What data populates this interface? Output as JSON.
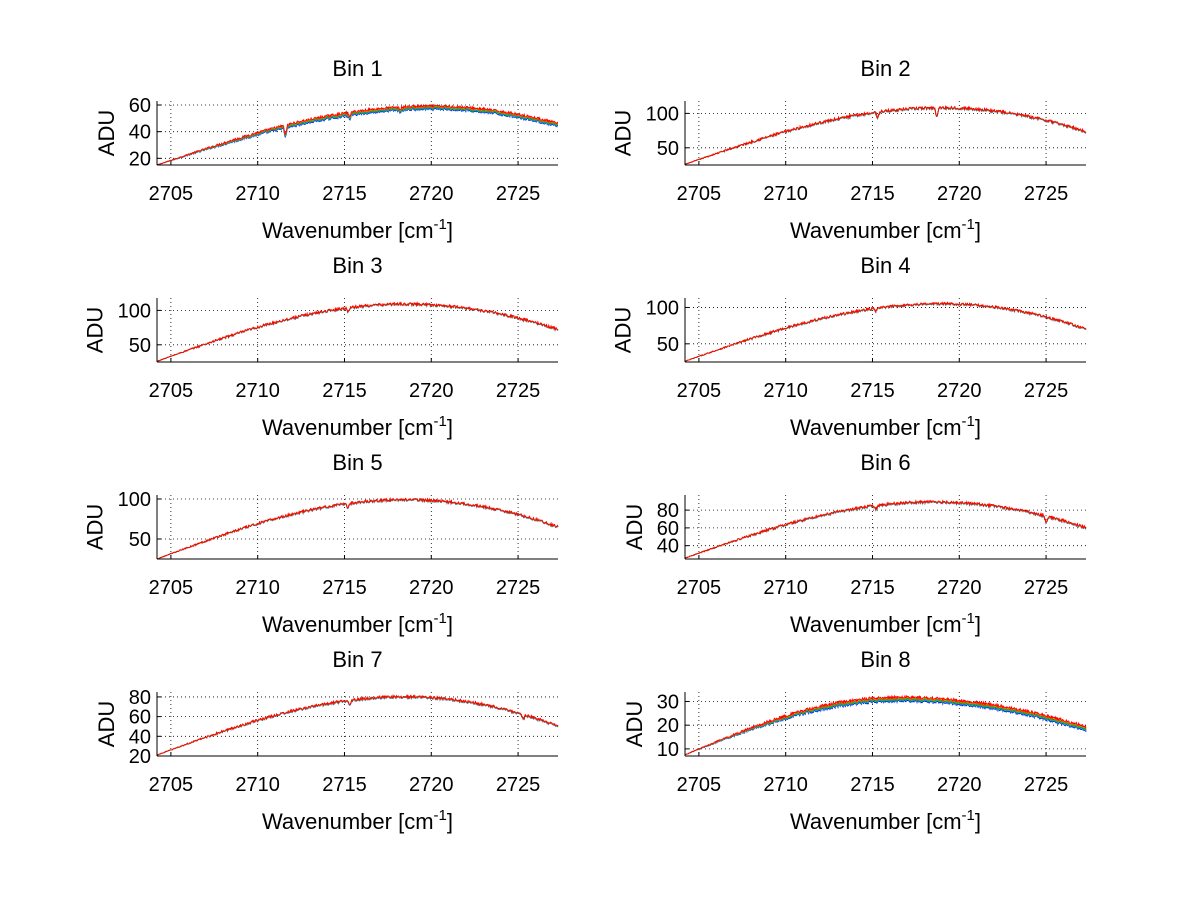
{
  "figure": {
    "background": "#ffffff",
    "series_colors": [
      "#0000ff",
      "#00c0c0",
      "#00a000",
      "#ff8000",
      "#ff0000"
    ]
  },
  "chart_data": [
    {
      "type": "line",
      "title": "Bin 1",
      "xlabel": "Wavenumber [cm",
      "xlabel_sup": "-1",
      "xlabel_close": "]",
      "ylabel": "ADU",
      "xlim": [
        2704.2,
        2727.3
      ],
      "ylim": [
        15,
        63
      ],
      "xticks": [
        2705,
        2710,
        2715,
        2720,
        2725
      ],
      "yticks": [
        20,
        40,
        60
      ],
      "grid": true,
      "curve": {
        "start": 15,
        "peak": 58,
        "peak_x": 2720,
        "end": 45,
        "noise": 0.9
      },
      "series_spread": 1.2,
      "features": [
        {
          "x": 2711.6,
          "depth": 7
        },
        {
          "x": 2715.3,
          "depth": 3
        },
        {
          "x": 2718.2,
          "depth": 2
        }
      ]
    },
    {
      "type": "line",
      "title": "Bin 2",
      "xlabel": "Wavenumber [cm",
      "xlabel_sup": "-1",
      "xlabel_close": "]",
      "ylabel": "ADU",
      "xlim": [
        2704.2,
        2727.3
      ],
      "ylim": [
        25,
        118
      ],
      "xticks": [
        2705,
        2710,
        2715,
        2720,
        2725
      ],
      "yticks": [
        50,
        100
      ],
      "grid": true,
      "curve": {
        "start": 26,
        "peak": 108,
        "peak_x": 2719,
        "end": 73,
        "noise": 1.8
      },
      "series_spread": 0.5,
      "features": [
        {
          "x": 2715.3,
          "depth": 8
        },
        {
          "x": 2718.7,
          "depth": 12
        }
      ]
    },
    {
      "type": "line",
      "title": "Bin 3",
      "xlabel": "Wavenumber [cm",
      "xlabel_sup": "-1",
      "xlabel_close": "]",
      "ylabel": "ADU",
      "xlim": [
        2704.2,
        2727.3
      ],
      "ylim": [
        25,
        118
      ],
      "xticks": [
        2705,
        2710,
        2715,
        2720,
        2725
      ],
      "yticks": [
        50,
        100
      ],
      "grid": true,
      "curve": {
        "start": 26,
        "peak": 109,
        "peak_x": 2718.5,
        "end": 72,
        "noise": 1.8
      },
      "series_spread": 0.4,
      "features": [
        {
          "x": 2715.2,
          "depth": 5
        }
      ]
    },
    {
      "type": "line",
      "title": "Bin 4",
      "xlabel": "Wavenumber [cm",
      "xlabel_sup": "-1",
      "xlabel_close": "]",
      "ylabel": "ADU",
      "xlim": [
        2704.2,
        2727.3
      ],
      "ylim": [
        25,
        113
      ],
      "xticks": [
        2705,
        2710,
        2715,
        2720,
        2725
      ],
      "yticks": [
        50,
        100
      ],
      "grid": true,
      "curve": {
        "start": 26,
        "peak": 105,
        "peak_x": 2719,
        "end": 70,
        "noise": 1.6
      },
      "series_spread": 0.4,
      "features": [
        {
          "x": 2715.2,
          "depth": 4
        }
      ]
    },
    {
      "type": "line",
      "title": "Bin 5",
      "xlabel": "Wavenumber [cm",
      "xlabel_sup": "-1",
      "xlabel_close": "]",
      "ylabel": "ADU",
      "xlim": [
        2704.2,
        2727.3
      ],
      "ylim": [
        25,
        105
      ],
      "xticks": [
        2705,
        2710,
        2715,
        2720,
        2725
      ],
      "yticks": [
        50,
        100
      ],
      "grid": true,
      "curve": {
        "start": 25,
        "peak": 99,
        "peak_x": 2718.5,
        "end": 65,
        "noise": 1.5
      },
      "series_spread": 0.4,
      "features": [
        {
          "x": 2715.2,
          "depth": 5
        }
      ]
    },
    {
      "type": "line",
      "title": "Bin 6",
      "xlabel": "Wavenumber [cm",
      "xlabel_sup": "-1",
      "xlabel_close": "]",
      "ylabel": "ADU",
      "xlim": [
        2704.2,
        2727.3
      ],
      "ylim": [
        25,
        97
      ],
      "xticks": [
        2705,
        2710,
        2715,
        2720,
        2725
      ],
      "yticks": [
        40,
        60,
        80
      ],
      "grid": true,
      "curve": {
        "start": 26,
        "peak": 89,
        "peak_x": 2718.5,
        "end": 60,
        "noise": 1.4
      },
      "series_spread": 0.4,
      "features": [
        {
          "x": 2715.2,
          "depth": 4
        },
        {
          "x": 2725,
          "depth": 7
        }
      ]
    },
    {
      "type": "line",
      "title": "Bin 7",
      "xlabel": "Wavenumber [cm",
      "xlabel_sup": "-1",
      "xlabel_close": "]",
      "ylabel": "ADU",
      "xlim": [
        2704.2,
        2727.3
      ],
      "ylim": [
        20,
        85
      ],
      "xticks": [
        2705,
        2710,
        2715,
        2720,
        2725
      ],
      "yticks": [
        20,
        40,
        60,
        80
      ],
      "grid": true,
      "curve": {
        "start": 21,
        "peak": 80,
        "peak_x": 2718.5,
        "end": 50,
        "noise": 1.2
      },
      "series_spread": 0.4,
      "features": [
        {
          "x": 2715.3,
          "depth": 4
        },
        {
          "x": 2725.3,
          "depth": 5
        }
      ]
    },
    {
      "type": "line",
      "title": "Bin 8",
      "xlabel": "Wavenumber [cm",
      "xlabel_sup": "-1",
      "xlabel_close": "]",
      "ylabel": "ADU",
      "xlim": [
        2704.2,
        2727.3
      ],
      "ylim": [
        7,
        34
      ],
      "xticks": [
        2705,
        2710,
        2715,
        2720,
        2725
      ],
      "yticks": [
        10,
        20,
        30
      ],
      "grid": true,
      "curve": {
        "start": 7.5,
        "peak": 31,
        "peak_x": 2716.5,
        "end": 18.5,
        "noise": 0.6
      },
      "series_spread": 0.8,
      "features": []
    }
  ]
}
